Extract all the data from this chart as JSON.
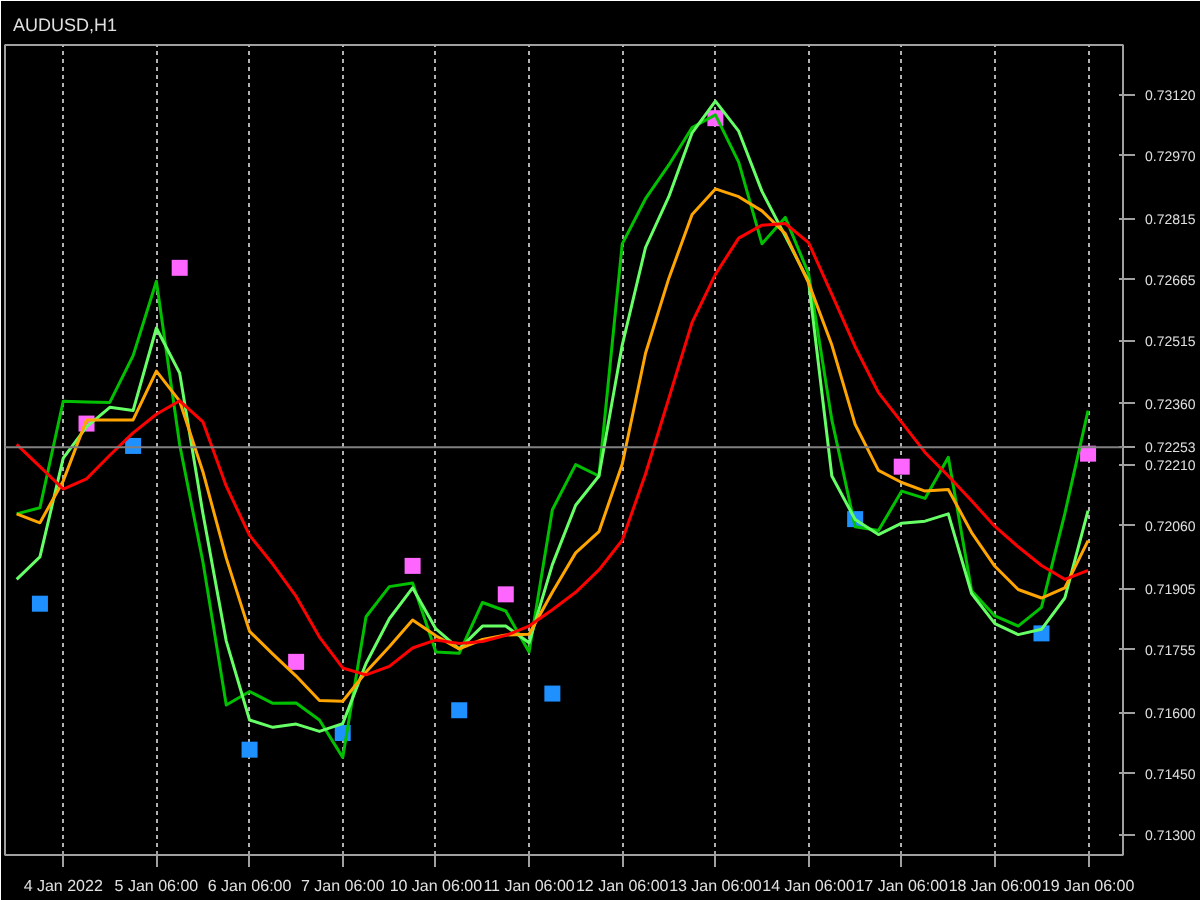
{
  "chart_data": {
    "type": "line",
    "title": "AUDUSD,H1",
    "categories": [
      null,
      null,
      "4 Jan 2022",
      null,
      null,
      null,
      "5 Jan 06:00",
      null,
      null,
      null,
      "6 Jan 06:00",
      null,
      null,
      null,
      "7 Jan 06:00",
      null,
      null,
      null,
      "10 Jan 06:00",
      null,
      null,
      null,
      "11 Jan 06:00",
      null,
      null,
      null,
      "12 Jan 06:00",
      null,
      null,
      null,
      "13 Jan 06:00",
      null,
      null,
      null,
      "14 Jan 06:00",
      null,
      null,
      null,
      "17 Jan 06:00",
      null,
      null,
      null,
      "18 Jan 06:00",
      null,
      null,
      null,
      "19 Jan 06:00",
      null
    ],
    "ylim": [
      0.7125,
      0.73242
    ],
    "yticks": [
      {
        "value": 0.713,
        "label": "0.71300"
      },
      {
        "value": 0.7145,
        "label": "0.71450"
      },
      {
        "value": 0.716,
        "label": "0.71600"
      },
      {
        "value": 0.71755,
        "label": "0.71755"
      },
      {
        "value": 0.71905,
        "label": "0.71905"
      },
      {
        "value": 0.7206,
        "label": "0.72060"
      },
      {
        "value": 0.7221,
        "label": "0.72210"
      },
      {
        "value": 0.7236,
        "label": "0.72360"
      },
      {
        "value": 0.72515,
        "label": "0.72515"
      },
      {
        "value": 0.72665,
        "label": "0.72665"
      },
      {
        "value": 0.72815,
        "label": "0.72815"
      },
      {
        "value": 0.7297,
        "label": "0.72970"
      },
      {
        "value": 0.7312,
        "label": "0.73120"
      }
    ],
    "grid": "x",
    "line_style": "solid",
    "ref_lines": [
      {
        "axis": "y",
        "value": 0.72253,
        "label": "0.72253",
        "color": "#808080",
        "line_style": "solid"
      }
    ],
    "series": [
      {
        "color": "#00c000",
        "values": [
          0.72089,
          0.72104,
          0.72366,
          0.72364,
          0.72363,
          0.72478,
          0.72661,
          0.72259,
          0.7197,
          0.71619,
          0.71652,
          0.71623,
          0.71624,
          0.71582,
          0.7149,
          0.71836,
          0.7191,
          0.71919,
          0.71749,
          0.71746,
          0.71871,
          0.7185,
          0.71749,
          0.72099,
          0.7221,
          0.72182,
          0.72753,
          0.72864,
          0.72947,
          0.73039,
          0.7307,
          0.72954,
          0.72753,
          0.72818,
          0.7268,
          0.7232,
          0.72057,
          0.72048,
          0.72145,
          0.72127,
          0.72228,
          0.719,
          0.71838,
          0.71813,
          0.71859,
          0.72089,
          0.72343,
          null
        ]
      },
      {
        "color": "#66ff66",
        "values": [
          0.71928,
          0.71983,
          0.72226,
          0.72303,
          0.72351,
          0.72343,
          0.72546,
          0.72435,
          0.72089,
          0.71776,
          0.71582,
          0.71564,
          0.71572,
          0.71554,
          0.71573,
          0.71721,
          0.71831,
          0.71907,
          0.71806,
          0.71757,
          0.71813,
          0.71813,
          0.71772,
          0.71964,
          0.7211,
          0.72182,
          0.72504,
          0.72744,
          0.72869,
          0.73026,
          0.73104,
          0.7303,
          0.72882,
          0.72772,
          0.72661,
          0.72182,
          0.72075,
          0.72038,
          0.72066,
          0.72071,
          0.72089,
          0.71893,
          0.71819,
          0.71792,
          0.71805,
          0.71882,
          0.72097,
          null
        ]
      },
      {
        "color": "#ffa500",
        "values": [
          0.72089,
          0.72067,
          0.7217,
          0.7232,
          0.7232,
          0.7232,
          0.7244,
          0.72366,
          0.72192,
          0.7198,
          0.718,
          0.71744,
          0.7169,
          0.7163,
          0.71628,
          0.717,
          0.71762,
          0.71828,
          0.71789,
          0.71757,
          0.7178,
          0.71791,
          0.71793,
          0.71896,
          0.71993,
          0.72045,
          0.72211,
          0.72484,
          0.72668,
          0.72825,
          0.72888,
          0.72869,
          0.72834,
          0.72778,
          0.72657,
          0.72504,
          0.72309,
          0.72196,
          0.72166,
          0.72145,
          0.72149,
          0.72043,
          0.7196,
          0.71903,
          0.71882,
          0.71907,
          0.72023,
          null
        ]
      },
      {
        "color": "#ff0000",
        "values": [
          0.7226,
          0.72205,
          0.7215,
          0.72175,
          0.72233,
          0.72288,
          0.72334,
          0.72367,
          0.72315,
          0.72157,
          0.72036,
          0.71965,
          0.71886,
          0.71786,
          0.7171,
          0.71693,
          0.71714,
          0.71759,
          0.71779,
          0.7177,
          0.71775,
          0.7179,
          0.71813,
          0.71853,
          0.71896,
          0.71951,
          0.72024,
          0.72187,
          0.72373,
          0.7256,
          0.72678,
          0.72767,
          0.72799,
          0.72803,
          0.72756,
          0.72629,
          0.725,
          0.72387,
          0.72314,
          0.7224,
          0.72182,
          0.72121,
          0.72058,
          0.72008,
          0.71962,
          0.71928,
          0.7195,
          null
        ]
      },
      {
        "type": "scatter",
        "marker": "square",
        "color": "#ff66ff",
        "values": [
          null,
          null,
          null,
          0.72311,
          null,
          null,
          null,
          0.72694,
          null,
          null,
          null,
          null,
          0.71725,
          null,
          null,
          null,
          null,
          0.71961,
          null,
          null,
          null,
          0.71891,
          null,
          null,
          null,
          null,
          null,
          null,
          null,
          null,
          0.73062,
          null,
          null,
          null,
          null,
          null,
          null,
          null,
          0.72205,
          null,
          null,
          null,
          null,
          null,
          null,
          null,
          0.72237,
          null
        ]
      },
      {
        "type": "scatter",
        "marker": "square",
        "color": "#1e90ff",
        "values": [
          null,
          0.71868,
          null,
          null,
          null,
          0.72256,
          null,
          null,
          null,
          null,
          0.71509,
          null,
          null,
          null,
          0.7155,
          null,
          null,
          null,
          null,
          0.71606,
          null,
          null,
          null,
          0.71647,
          null,
          null,
          null,
          null,
          null,
          null,
          null,
          null,
          null,
          null,
          null,
          null,
          0.72076,
          null,
          null,
          null,
          null,
          null,
          null,
          null,
          0.71795,
          null,
          null,
          null
        ]
      }
    ]
  }
}
